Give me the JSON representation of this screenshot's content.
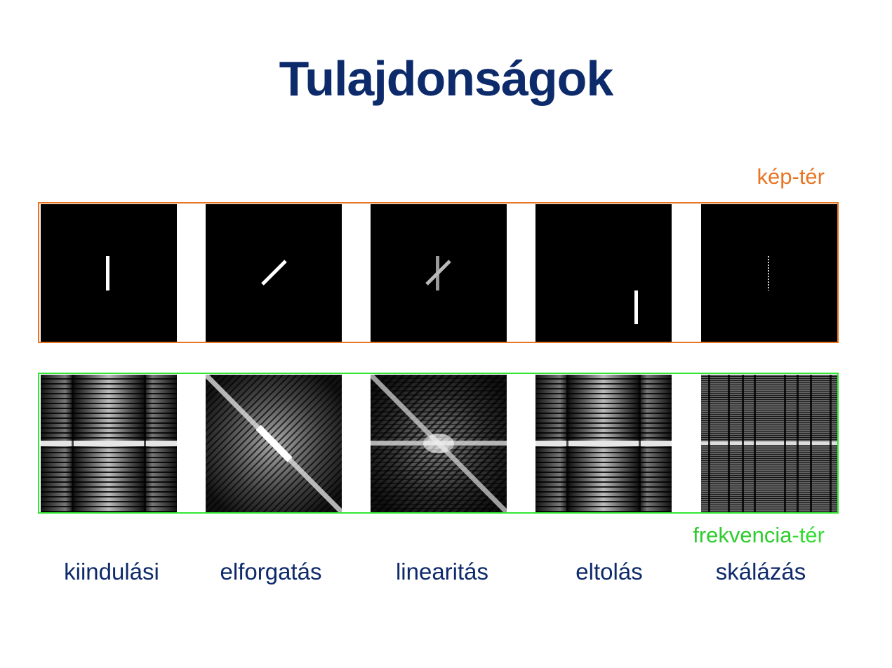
{
  "slide": {
    "title": "Tulajdonságok",
    "image_space_label": "kép-tér",
    "frequency_space_label_main": "frekvencia",
    "frequency_space_label_suffix": "-tér"
  },
  "columns": [
    {
      "caption": "kiindulási"
    },
    {
      "caption": "elforgatás"
    },
    {
      "caption": "linearitás"
    },
    {
      "caption": "eltolás"
    },
    {
      "caption": "skálázás"
    }
  ],
  "colors": {
    "title": "#0d2a6b",
    "image_frame": "#e97524",
    "frequency_frame": "#33e633",
    "caption": "#0d2a6b"
  }
}
